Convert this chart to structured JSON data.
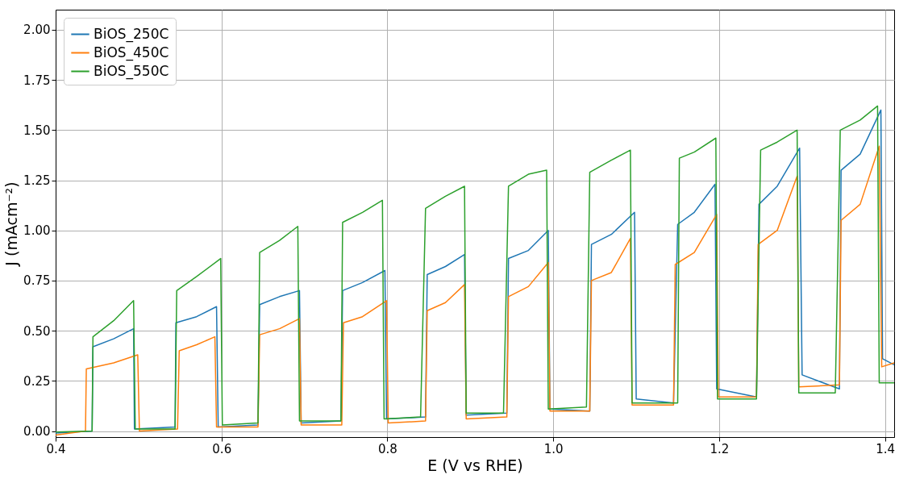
{
  "chart_data": {
    "type": "line",
    "xlabel": "E (V vs RHE)",
    "ylabel": "J (mAcm⁻²)",
    "xlim": [
      0.4,
      1.411
    ],
    "ylim": [
      -0.03,
      2.1
    ],
    "xticks": [
      {
        "value": 0.4,
        "label": "0.4"
      },
      {
        "value": 0.6,
        "label": "0.6"
      },
      {
        "value": 0.8,
        "label": "0.8"
      },
      {
        "value": 1.0,
        "label": "1.0"
      },
      {
        "value": 1.2,
        "label": "1.2"
      },
      {
        "value": 1.4,
        "label": "1.4"
      }
    ],
    "yticks": [
      {
        "value": 0,
        "label": "0.00"
      },
      {
        "value": 0.25,
        "label": "0.25"
      },
      {
        "value": 0.5,
        "label": "0.50"
      },
      {
        "value": 0.75,
        "label": "0.75"
      },
      {
        "value": 1.0,
        "label": "1.00"
      },
      {
        "value": 1.25,
        "label": "1.25"
      },
      {
        "value": 1.5,
        "label": "1.50"
      },
      {
        "value": 1.75,
        "label": "1.75"
      },
      {
        "value": 2.0,
        "label": "2.00"
      }
    ],
    "grid": true,
    "legend": "top left",
    "marker": "none",
    "line_style": "solid",
    "series": [
      {
        "name": "BiOS_250C",
        "color": "#1f77b4",
        "x": [
          0.4,
          0.444,
          0.445,
          0.47,
          0.494,
          0.495,
          0.544,
          0.545,
          0.57,
          0.594,
          0.596,
          0.644,
          0.646,
          0.67,
          0.694,
          0.696,
          0.744,
          0.746,
          0.77,
          0.797,
          0.799,
          0.846,
          0.848,
          0.87,
          0.893,
          0.895,
          0.944,
          0.946,
          0.97,
          0.994,
          0.996,
          1.044,
          1.046,
          1.07,
          1.098,
          1.1,
          1.145,
          1.15,
          1.17,
          1.195,
          1.197,
          1.245,
          1.248,
          1.27,
          1.297,
          1.3,
          1.345,
          1.347,
          1.37,
          1.395,
          1.397,
          1.411
        ],
        "values": [
          -0.01,
          0.0,
          0.42,
          0.46,
          0.51,
          0.01,
          0.02,
          0.54,
          0.57,
          0.62,
          0.02,
          0.03,
          0.63,
          0.67,
          0.7,
          0.04,
          0.05,
          0.7,
          0.74,
          0.8,
          0.06,
          0.07,
          0.78,
          0.82,
          0.88,
          0.08,
          0.09,
          0.86,
          0.9,
          1.0,
          0.11,
          0.1,
          0.93,
          0.98,
          1.09,
          0.16,
          0.14,
          1.03,
          1.09,
          1.23,
          0.21,
          0.17,
          1.13,
          1.22,
          1.41,
          0.28,
          0.21,
          1.3,
          1.38,
          1.6,
          0.36,
          0.33
        ]
      },
      {
        "name": "BiOS_450C",
        "color": "#ff7f0e",
        "x": [
          0.4,
          0.436,
          0.437,
          0.47,
          0.499,
          0.501,
          0.547,
          0.549,
          0.57,
          0.592,
          0.594,
          0.644,
          0.646,
          0.67,
          0.694,
          0.696,
          0.745,
          0.747,
          0.77,
          0.799,
          0.801,
          0.846,
          0.848,
          0.87,
          0.893,
          0.895,
          0.944,
          0.946,
          0.97,
          0.994,
          0.996,
          1.044,
          1.046,
          1.07,
          1.093,
          1.095,
          1.145,
          1.147,
          1.17,
          1.197,
          1.199,
          1.245,
          1.247,
          1.27,
          1.294,
          1.296,
          1.345,
          1.347,
          1.37,
          1.393,
          1.396,
          1.411
        ],
        "values": [
          -0.02,
          0.0,
          0.31,
          0.34,
          0.38,
          0.0,
          0.01,
          0.4,
          0.43,
          0.47,
          0.02,
          0.02,
          0.48,
          0.51,
          0.56,
          0.03,
          0.03,
          0.54,
          0.57,
          0.65,
          0.04,
          0.05,
          0.6,
          0.64,
          0.73,
          0.06,
          0.07,
          0.67,
          0.72,
          0.84,
          0.1,
          0.1,
          0.75,
          0.79,
          0.96,
          0.13,
          0.13,
          0.83,
          0.89,
          1.08,
          0.17,
          0.17,
          0.93,
          1.0,
          1.27,
          0.22,
          0.23,
          1.05,
          1.13,
          1.42,
          0.32,
          0.34
        ]
      },
      {
        "name": "BiOS_550C",
        "color": "#2ca02c",
        "x": [
          0.4,
          0.444,
          0.445,
          0.47,
          0.494,
          0.496,
          0.544,
          0.546,
          0.57,
          0.599,
          0.601,
          0.644,
          0.646,
          0.67,
          0.692,
          0.694,
          0.744,
          0.746,
          0.77,
          0.794,
          0.796,
          0.84,
          0.846,
          0.87,
          0.893,
          0.895,
          0.94,
          0.946,
          0.97,
          0.992,
          0.994,
          1.04,
          1.044,
          1.07,
          1.093,
          1.095,
          1.15,
          1.152,
          1.17,
          1.196,
          1.198,
          1.245,
          1.25,
          1.27,
          1.294,
          1.296,
          1.34,
          1.346,
          1.37,
          1.391,
          1.393,
          1.411
        ],
        "values": [
          -0.005,
          0.0,
          0.47,
          0.55,
          0.65,
          0.01,
          0.01,
          0.7,
          0.77,
          0.86,
          0.03,
          0.04,
          0.89,
          0.95,
          1.02,
          0.05,
          0.05,
          1.04,
          1.09,
          1.15,
          0.06,
          0.07,
          1.11,
          1.17,
          1.22,
          0.09,
          0.09,
          1.22,
          1.28,
          1.3,
          0.11,
          0.12,
          1.29,
          1.35,
          1.4,
          0.14,
          0.14,
          1.36,
          1.39,
          1.46,
          0.16,
          0.16,
          1.4,
          1.44,
          1.5,
          0.19,
          0.19,
          1.5,
          1.55,
          1.62,
          0.24,
          0.24
        ]
      }
    ]
  }
}
